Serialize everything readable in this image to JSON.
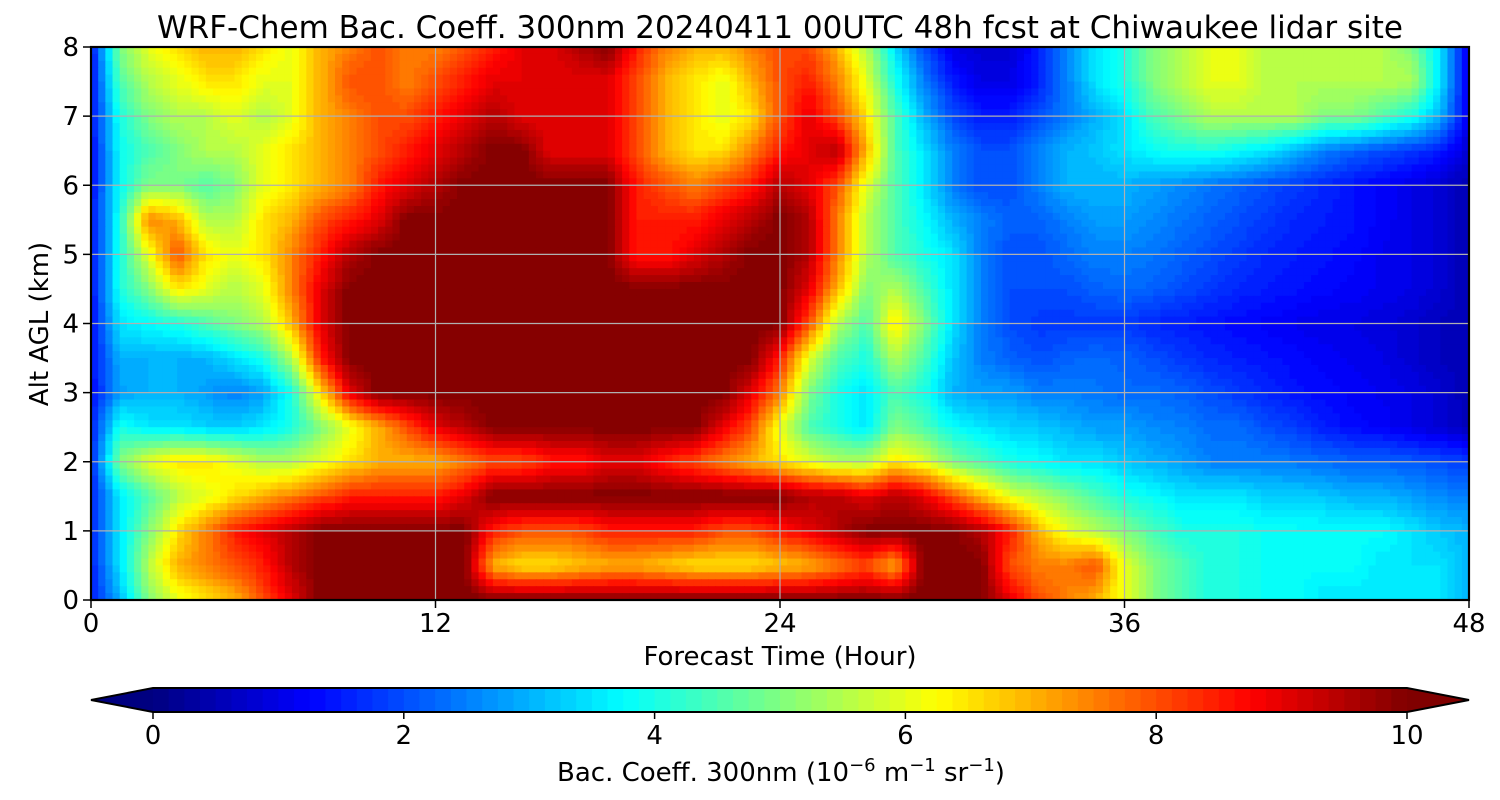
{
  "chart_data": {
    "type": "heatmap",
    "title": "WRF-Chem Bac. Coeff. 300nm  20240411 00UTC 48h fcst at Chiwaukee lidar site",
    "xlabel": "Forecast Time (Hour)",
    "ylabel": "Alt AGL (km)",
    "xlim": [
      0,
      48
    ],
    "ylim": [
      0,
      8
    ],
    "xticks": [
      0,
      12,
      24,
      36,
      48
    ],
    "yticks": [
      0,
      1,
      2,
      3,
      4,
      5,
      6,
      7,
      8
    ],
    "grid": true,
    "colormap": "jet",
    "colorbar": {
      "label_main": "Bac. Coeff. 300nm  (10",
      "label_exp1": "−6",
      "label_mid": " m",
      "label_exp2": "−1",
      "label_mid2": " sr",
      "label_exp3": "−1",
      "label_end": ")",
      "range": [
        0,
        10
      ],
      "ticks": [
        0,
        2,
        4,
        6,
        8,
        10
      ],
      "extend": "both",
      "under_color": "#000080",
      "over_color": "#800000"
    },
    "z_hours": [
      0,
      1,
      2,
      3,
      4,
      5,
      6,
      7,
      8,
      9,
      10,
      11,
      12,
      13,
      14,
      15,
      16,
      17,
      18,
      19,
      20,
      21,
      22,
      23,
      24,
      25,
      26,
      27,
      28,
      29,
      30,
      31,
      32,
      33,
      34,
      35,
      36,
      37,
      38,
      39,
      40,
      41,
      42,
      43,
      44,
      45,
      46,
      47,
      48
    ],
    "z_altitudes_km": [
      0,
      0.5,
      1,
      1.5,
      2,
      2.5,
      3,
      3.5,
      4,
      4.5,
      5,
      5.5,
      6,
      6.5,
      7,
      7.5,
      8
    ],
    "z_values": [
      [
        1.5,
        3.0,
        5.0,
        6.0,
        6.5,
        7.0,
        8.0,
        9.0,
        10.0,
        10.0,
        10.0,
        10.0,
        10.0,
        10.0,
        10.0,
        10.0,
        10.0,
        10.0,
        10.0,
        10.0,
        10.0,
        10.0,
        10.0,
        10.0,
        10.0,
        10.0,
        10.0,
        10.0,
        10.0,
        10.0,
        10.0,
        10.0,
        9.0,
        8.0,
        7.5,
        7.0,
        6.0,
        5.0,
        4.5,
        4.0,
        4.0,
        3.8,
        3.8,
        3.5,
        3.5,
        3.5,
        3.5,
        3.5,
        3.0
      ],
      [
        1.5,
        3.5,
        5.5,
        7.0,
        7.5,
        8.0,
        8.5,
        9.5,
        10.0,
        10.0,
        10.0,
        10.0,
        10.0,
        10.0,
        7.0,
        6.5,
        6.5,
        6.8,
        7.0,
        7.0,
        6.8,
        6.5,
        6.5,
        6.5,
        6.8,
        7.0,
        7.5,
        8.0,
        7.0,
        10.0,
        10.0,
        10.0,
        8.0,
        7.5,
        7.5,
        8.0,
        6.0,
        5.0,
        4.5,
        4.0,
        4.0,
        3.8,
        3.8,
        3.8,
        3.8,
        3.5,
        3.5,
        3.5,
        3.0
      ],
      [
        1.5,
        3.5,
        5.0,
        6.5,
        7.5,
        8.5,
        9.0,
        9.5,
        10.0,
        10.0,
        10.0,
        10.0,
        10.0,
        10.0,
        8.5,
        8.0,
        8.0,
        8.0,
        8.5,
        8.5,
        8.5,
        8.5,
        8.0,
        8.0,
        8.5,
        9.0,
        9.5,
        10.0,
        10.0,
        10.0,
        10.0,
        9.5,
        8.5,
        7.0,
        6.0,
        5.5,
        5.0,
        4.5,
        4.0,
        4.0,
        4.0,
        3.8,
        3.8,
        3.8,
        3.8,
        3.8,
        3.5,
        3.2,
        3.0
      ],
      [
        1.5,
        3.5,
        4.5,
        5.5,
        6.0,
        6.5,
        7.0,
        7.5,
        8.0,
        8.5,
        8.5,
        8.5,
        8.5,
        9.0,
        10.0,
        10.0,
        10.0,
        10.0,
        10.0,
        10.0,
        10.0,
        10.0,
        10.0,
        10.0,
        10.0,
        9.5,
        9.5,
        9.0,
        9.5,
        9.0,
        8.0,
        7.0,
        6.0,
        5.5,
        5.0,
        4.5,
        4.0,
        3.8,
        3.5,
        3.5,
        3.5,
        3.3,
        3.3,
        3.2,
        3.0,
        3.0,
        2.8,
        2.6,
        2.5
      ],
      [
        1.5,
        5.0,
        6.0,
        6.5,
        6.5,
        6.0,
        5.5,
        5.5,
        6.0,
        6.5,
        7.0,
        7.0,
        7.0,
        7.5,
        8.0,
        8.0,
        8.5,
        8.5,
        9.0,
        9.0,
        8.5,
        8.0,
        7.5,
        7.0,
        6.5,
        6.0,
        5.5,
        5.5,
        6.5,
        6.0,
        5.0,
        4.5,
        4.0,
        3.8,
        3.5,
        3.5,
        3.2,
        3.0,
        2.8,
        2.5,
        2.5,
        2.5,
        2.4,
        2.3,
        2.2,
        2.2,
        2.1,
        2.0,
        1.8
      ],
      [
        1.5,
        4.0,
        3.5,
        3.5,
        3.3,
        3.3,
        3.5,
        4.0,
        5.0,
        6.0,
        7.0,
        8.0,
        9.0,
        9.5,
        10.0,
        10.0,
        10.0,
        10.0,
        10.0,
        10.0,
        10.0,
        10.0,
        9.0,
        8.0,
        6.0,
        4.5,
        4.0,
        3.5,
        5.0,
        4.5,
        3.8,
        3.5,
        3.3,
        3.2,
        3.0,
        2.8,
        2.8,
        2.6,
        2.5,
        2.3,
        2.3,
        2.0,
        1.8,
        1.5,
        1.3,
        1.2,
        1.0,
        0.8,
        0.6
      ],
      [
        1.3,
        2.8,
        3.0,
        3.0,
        2.8,
        2.5,
        2.8,
        4.0,
        6.5,
        9.0,
        10.0,
        10.0,
        10.0,
        10.0,
        10.0,
        10.0,
        10.0,
        10.0,
        10.0,
        10.0,
        10.0,
        10.0,
        10.0,
        9.0,
        7.5,
        5.0,
        4.0,
        3.5,
        4.5,
        4.0,
        3.0,
        2.8,
        2.8,
        2.5,
        2.5,
        2.4,
        2.3,
        2.3,
        2.2,
        2.0,
        1.8,
        1.6,
        1.4,
        1.3,
        1.2,
        1.1,
        1.0,
        0.8,
        0.5
      ],
      [
        1.3,
        3.0,
        3.0,
        3.0,
        3.0,
        3.5,
        4.0,
        5.5,
        8.5,
        10.0,
        10.0,
        10.0,
        10.0,
        10.0,
        10.0,
        10.0,
        10.0,
        10.0,
        10.0,
        10.0,
        10.0,
        10.0,
        10.0,
        10.0,
        8.5,
        6.0,
        4.5,
        4.0,
        5.5,
        4.5,
        3.2,
        2.5,
        2.2,
        2.0,
        2.2,
        2.3,
        2.2,
        2.0,
        1.8,
        1.6,
        1.5,
        1.4,
        1.3,
        1.2,
        1.1,
        1.0,
        0.8,
        0.6,
        0.5
      ],
      [
        1.3,
        3.5,
        3.8,
        4.0,
        4.5,
        5.0,
        5.5,
        7.0,
        9.0,
        10.0,
        10.0,
        10.0,
        10.0,
        10.0,
        10.0,
        10.0,
        10.0,
        10.0,
        10.0,
        10.0,
        10.0,
        10.0,
        10.0,
        10.0,
        10.0,
        8.0,
        5.5,
        4.5,
        6.5,
        5.0,
        3.5,
        2.5,
        2.0,
        1.8,
        1.8,
        1.8,
        1.8,
        1.6,
        1.5,
        1.4,
        1.3,
        1.2,
        1.1,
        1.0,
        1.0,
        0.9,
        0.8,
        0.6,
        0.5
      ],
      [
        1.3,
        4.0,
        5.0,
        6.5,
        6.0,
        5.5,
        6.0,
        7.5,
        9.0,
        10.0,
        10.0,
        10.0,
        10.0,
        10.0,
        10.0,
        10.0,
        10.0,
        10.0,
        10.0,
        10.0,
        10.0,
        10.0,
        10.0,
        10.0,
        10.0,
        9.0,
        7.0,
        5.0,
        5.5,
        4.5,
        3.5,
        2.5,
        2.0,
        2.0,
        2.0,
        2.2,
        2.3,
        2.2,
        2.0,
        1.8,
        1.6,
        1.5,
        1.4,
        1.3,
        1.2,
        1.1,
        1.0,
        0.8,
        0.5
      ],
      [
        1.3,
        4.0,
        6.0,
        8.0,
        6.5,
        6.0,
        6.5,
        7.5,
        8.5,
        9.5,
        10.0,
        10.0,
        10.0,
        10.0,
        10.0,
        10.0,
        10.0,
        10.0,
        10.0,
        8.5,
        8.5,
        9.0,
        9.5,
        10.0,
        10.0,
        9.5,
        7.5,
        5.5,
        4.5,
        4.0,
        3.5,
        2.5,
        2.0,
        2.0,
        2.3,
        2.5,
        2.5,
        2.4,
        2.2,
        2.0,
        1.8,
        1.6,
        1.5,
        1.4,
        1.3,
        1.1,
        1.0,
        0.8,
        0.5
      ],
      [
        1.3,
        4.0,
        7.5,
        7.0,
        5.5,
        5.5,
        6.5,
        7.0,
        8.0,
        8.5,
        9.0,
        10.0,
        10.0,
        10.0,
        10.0,
        10.0,
        10.0,
        10.0,
        10.0,
        8.5,
        8.5,
        8.5,
        9.0,
        9.5,
        10.0,
        9.5,
        7.5,
        5.5,
        4.5,
        3.8,
        3.0,
        2.5,
        2.2,
        2.2,
        2.5,
        2.8,
        2.8,
        2.6,
        2.4,
        2.2,
        2.0,
        1.8,
        1.6,
        1.5,
        1.4,
        1.2,
        1.0,
        0.8,
        0.5
      ],
      [
        1.3,
        3.8,
        5.0,
        5.0,
        4.5,
        5.0,
        6.0,
        6.5,
        7.0,
        7.5,
        8.5,
        9.0,
        9.5,
        10.0,
        10.0,
        10.0,
        10.0,
        10.0,
        10.0,
        8.5,
        8.0,
        7.5,
        8.0,
        8.5,
        9.5,
        9.0,
        8.0,
        6.0,
        4.5,
        3.5,
        2.5,
        2.0,
        2.0,
        2.5,
        3.0,
        3.0,
        3.0,
        2.8,
        2.6,
        2.4,
        2.2,
        2.0,
        1.8,
        1.6,
        1.4,
        1.2,
        1.0,
        0.8,
        0.5
      ],
      [
        1.3,
        3.8,
        4.5,
        5.0,
        5.5,
        5.5,
        6.0,
        6.5,
        7.0,
        7.5,
        8.0,
        8.5,
        9.0,
        9.5,
        10.0,
        10.0,
        9.0,
        9.0,
        9.0,
        8.0,
        7.0,
        6.5,
        6.5,
        7.5,
        8.5,
        9.0,
        9.5,
        7.0,
        4.5,
        3.5,
        2.5,
        2.0,
        2.0,
        2.5,
        3.0,
        3.2,
        3.5,
        3.8,
        4.0,
        4.0,
        3.8,
        3.5,
        3.0,
        2.5,
        2.2,
        2.0,
        1.8,
        1.5,
        0.8
      ],
      [
        1.3,
        4.0,
        5.0,
        5.5,
        5.5,
        6.0,
        5.5,
        6.0,
        7.0,
        7.5,
        8.0,
        8.0,
        8.5,
        9.0,
        9.5,
        9.0,
        9.0,
        9.0,
        9.0,
        8.0,
        7.0,
        6.5,
        6.0,
        6.5,
        8.0,
        9.0,
        8.0,
        6.5,
        4.5,
        3.0,
        2.0,
        1.5,
        1.5,
        2.0,
        2.5,
        3.0,
        3.5,
        4.5,
        5.0,
        5.5,
        5.5,
        5.5,
        5.5,
        5.0,
        5.0,
        4.5,
        4.0,
        3.0,
        1.0
      ],
      [
        1.3,
        4.5,
        5.5,
        6.0,
        6.5,
        6.5,
        6.0,
        6.0,
        7.0,
        8.0,
        8.0,
        7.5,
        8.0,
        8.5,
        9.0,
        9.0,
        9.0,
        9.0,
        9.0,
        8.0,
        7.0,
        6.5,
        6.0,
        7.0,
        8.0,
        8.5,
        7.5,
        6.0,
        4.0,
        2.5,
        1.5,
        1.0,
        1.0,
        1.5,
        2.5,
        3.5,
        4.0,
        5.0,
        5.5,
        6.0,
        6.0,
        5.5,
        5.5,
        5.5,
        5.5,
        5.5,
        5.5,
        3.5,
        1.0
      ],
      [
        1.3,
        5.0,
        6.0,
        6.5,
        7.0,
        7.0,
        6.5,
        6.0,
        7.0,
        7.5,
        8.0,
        7.5,
        7.5,
        8.0,
        8.5,
        9.0,
        9.0,
        9.5,
        10.0,
        8.5,
        7.5,
        7.0,
        7.0,
        7.5,
        8.0,
        8.0,
        7.0,
        5.5,
        3.5,
        2.0,
        1.0,
        0.8,
        0.8,
        1.5,
        2.5,
        3.5,
        4.0,
        5.0,
        5.5,
        6.0,
        6.0,
        5.5,
        5.5,
        5.5,
        5.5,
        5.5,
        5.0,
        3.5,
        1.0
      ]
    ]
  }
}
